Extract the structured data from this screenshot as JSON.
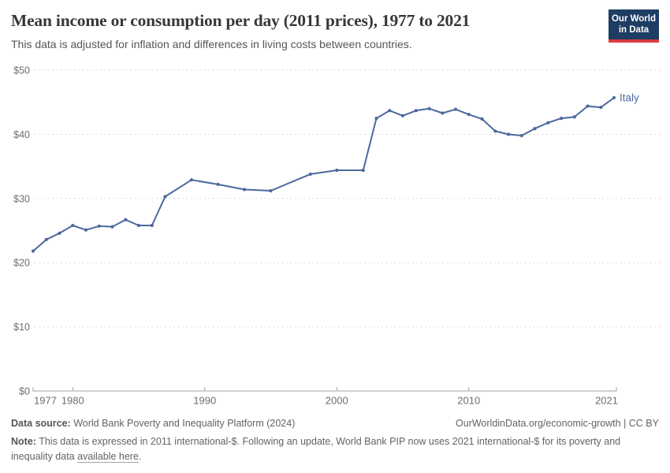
{
  "header": {
    "title": "Mean income or consumption per day (2011 prices), 1977 to 2021",
    "subtitle": "This data is adjusted for inflation and differences in living costs between countries."
  },
  "logo": {
    "line1": "Our World",
    "line2": "in Data",
    "bg_color": "#1d3d63",
    "accent_color": "#d93c3f"
  },
  "chart_data": {
    "type": "line",
    "title": "Mean income or consumption per day (2011 prices), 1977 to 2021",
    "xlabel": "",
    "ylabel": "",
    "xlim": [
      1977,
      2021
    ],
    "ylim": [
      0,
      50
    ],
    "x_ticks": [
      1977,
      1980,
      1990,
      2000,
      2010,
      2021
    ],
    "y_ticks": [
      0,
      10,
      20,
      30,
      40,
      50
    ],
    "y_tick_prefix": "$",
    "grid": "horizontal-dashed",
    "legend_position": "end-of-line-label",
    "series": [
      {
        "name": "Italy",
        "end_label": "Italy",
        "color": "#4C689E",
        "points": [
          [
            1977,
            21.8
          ],
          [
            1978,
            23.6
          ],
          [
            1979,
            24.6
          ],
          [
            1980,
            25.8
          ],
          [
            1981,
            25.1
          ],
          [
            1982,
            25.7
          ],
          [
            1983,
            25.6
          ],
          [
            1984,
            26.7
          ],
          [
            1985,
            25.8
          ],
          [
            1986,
            25.8
          ],
          [
            1987,
            30.3
          ],
          [
            1989,
            32.9
          ],
          [
            1991,
            32.2
          ],
          [
            1993,
            31.4
          ],
          [
            1995,
            31.2
          ],
          [
            1998,
            33.8
          ],
          [
            2000,
            34.4
          ],
          [
            2002,
            34.4
          ],
          [
            2003,
            42.5
          ],
          [
            2004,
            43.7
          ],
          [
            2005,
            42.9
          ],
          [
            2006,
            43.7
          ],
          [
            2007,
            44.0
          ],
          [
            2008,
            43.3
          ],
          [
            2009,
            43.9
          ],
          [
            2010,
            43.1
          ],
          [
            2011,
            42.4
          ],
          [
            2012,
            40.5
          ],
          [
            2013,
            40.0
          ],
          [
            2014,
            39.8
          ],
          [
            2015,
            40.9
          ],
          [
            2016,
            41.8
          ],
          [
            2017,
            42.5
          ],
          [
            2018,
            42.7
          ],
          [
            2019,
            44.4
          ],
          [
            2020,
            44.2
          ],
          [
            2021,
            45.7
          ]
        ]
      }
    ],
    "colors": {
      "line": "#4C689E",
      "grid": "#d9d9d9",
      "axis": "#a3a3a3",
      "tick_text": "#6e6e6e"
    }
  },
  "footer": {
    "source_label": "Data source:",
    "source_text": " World Bank Poverty and Inequality Platform (2024)",
    "link_text": "OurWorldinData.org/economic-growth | CC BY",
    "note_label": "Note:",
    "note_text": " This data is expressed in 2011 international-$. Following an update, World Bank PIP now uses 2021 international-$ for its poverty and inequality data ",
    "note_link": "available here",
    "note_suffix": "."
  }
}
